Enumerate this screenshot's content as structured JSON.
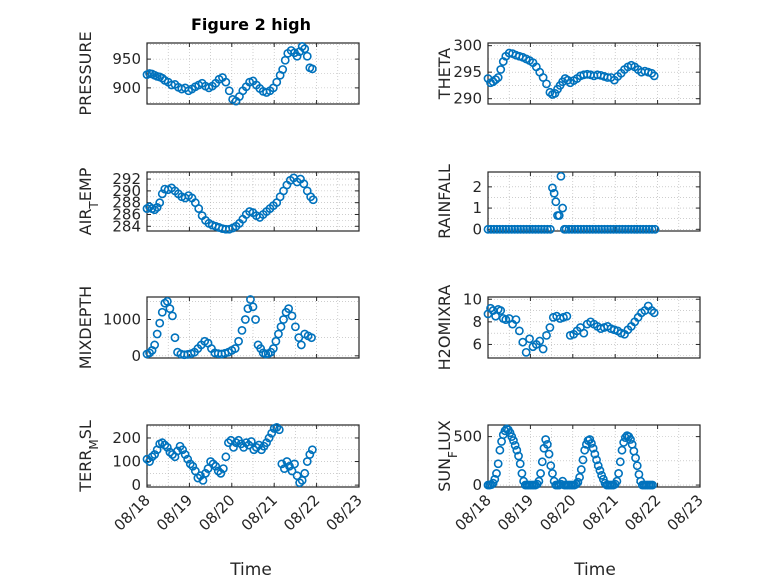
{
  "figure": {
    "title": "Figure 2 high",
    "marker_color": "#0072BD",
    "xlabel": "Time",
    "xticks": [
      "08/18",
      "08/19",
      "08/20",
      "08/21",
      "08/22",
      "08/23"
    ],
    "xrange": [
      0,
      5
    ]
  },
  "chart_data": [
    {
      "type": "scatter",
      "id": "pressure",
      "ylabel": "PRESSURE",
      "yticks": [
        900,
        950
      ],
      "ylim": [
        872,
        978
      ],
      "grid": true,
      "x": [
        0.0,
        0.06,
        0.12,
        0.18,
        0.24,
        0.3,
        0.36,
        0.42,
        0.5,
        0.58,
        0.66,
        0.74,
        0.82,
        0.9,
        0.98,
        1.06,
        1.14,
        1.22,
        1.3,
        1.38,
        1.46,
        1.54,
        1.62,
        1.7,
        1.78,
        1.86,
        1.94,
        2.02,
        2.1,
        2.18,
        2.26,
        2.34,
        2.42,
        2.5,
        2.58,
        2.66,
        2.74,
        2.82,
        2.9,
        2.98,
        3.06,
        3.14,
        3.2,
        3.26,
        3.32,
        3.4,
        3.48,
        3.54,
        3.6,
        3.66,
        3.72,
        3.78,
        3.84,
        3.9
      ],
      "y": [
        923,
        925,
        924,
        922,
        920,
        919,
        917,
        913,
        910,
        905,
        906,
        901,
        898,
        900,
        895,
        898,
        902,
        905,
        908,
        903,
        900,
        903,
        908,
        915,
        918,
        910,
        895,
        880,
        877,
        885,
        895,
        902,
        910,
        912,
        905,
        899,
        894,
        892,
        895,
        900,
        910,
        922,
        932,
        948,
        960,
        965,
        961,
        955,
        963,
        972,
        968,
        955,
        935,
        933
      ]
    },
    {
      "type": "scatter",
      "id": "theta",
      "ylabel": "THETA",
      "yticks": [
        290,
        295,
        300
      ],
      "ylim": [
        289,
        300.5
      ],
      "grid": true,
      "x": [
        0.0,
        0.06,
        0.12,
        0.18,
        0.24,
        0.3,
        0.36,
        0.42,
        0.5,
        0.58,
        0.66,
        0.74,
        0.82,
        0.9,
        0.98,
        1.06,
        1.14,
        1.22,
        1.3,
        1.38,
        1.46,
        1.52,
        1.58,
        1.64,
        1.7,
        1.76,
        1.82,
        1.88,
        1.94,
        2.02,
        2.1,
        2.18,
        2.26,
        2.34,
        2.42,
        2.5,
        2.58,
        2.66,
        2.74,
        2.82,
        2.9,
        2.98,
        3.06,
        3.14,
        3.22,
        3.3,
        3.38,
        3.46,
        3.54,
        3.62,
        3.7,
        3.78,
        3.86,
        3.92
      ],
      "y": [
        293.8,
        293.0,
        293.2,
        293.6,
        294.0,
        295.5,
        297.0,
        298.0,
        298.6,
        298.5,
        298.2,
        298.0,
        297.8,
        297.5,
        297.2,
        296.8,
        296.0,
        295.0,
        294.0,
        292.8,
        291.2,
        290.8,
        291.0,
        291.8,
        292.5,
        293.2,
        293.8,
        293.5,
        293.0,
        293.4,
        293.8,
        294.3,
        294.5,
        294.6,
        294.5,
        294.3,
        294.5,
        294.4,
        294.2,
        294.0,
        294.0,
        293.5,
        294.2,
        294.8,
        295.5,
        296.0,
        296.3,
        296.0,
        295.5,
        295.0,
        295.2,
        295.0,
        294.8,
        294.3
      ]
    },
    {
      "type": "scatter",
      "id": "air_temp",
      "ylabel": "AIR",
      "ylabel_sub": "T",
      "ylabel_rest": "EMP",
      "yticks": [
        284,
        286,
        288,
        290,
        292
      ],
      "ylim": [
        283.2,
        293.2
      ],
      "grid": true,
      "x": [
        0.0,
        0.06,
        0.12,
        0.18,
        0.24,
        0.3,
        0.36,
        0.42,
        0.5,
        0.58,
        0.66,
        0.74,
        0.82,
        0.9,
        0.98,
        1.06,
        1.14,
        1.22,
        1.3,
        1.38,
        1.46,
        1.54,
        1.62,
        1.7,
        1.78,
        1.86,
        1.94,
        2.02,
        2.1,
        2.18,
        2.26,
        2.34,
        2.42,
        2.5,
        2.58,
        2.66,
        2.74,
        2.82,
        2.9,
        2.98,
        3.06,
        3.14,
        3.22,
        3.3,
        3.38,
        3.46,
        3.54,
        3.62,
        3.7,
        3.78,
        3.86,
        3.92
      ],
      "y": [
        287.0,
        287.3,
        287.0,
        286.8,
        287.2,
        288.0,
        289.5,
        290.3,
        290.2,
        290.5,
        290.0,
        289.5,
        289.0,
        288.8,
        289.2,
        288.8,
        288.0,
        287.0,
        285.8,
        285.0,
        284.5,
        284.2,
        284.0,
        283.8,
        283.6,
        283.5,
        283.5,
        283.7,
        284.0,
        284.5,
        285.2,
        286.0,
        286.5,
        286.3,
        285.8,
        285.5,
        286.0,
        286.5,
        287.0,
        287.5,
        288.0,
        289.0,
        290.0,
        291.0,
        291.8,
        292.2,
        291.5,
        292.0,
        291.2,
        290.0,
        289.0,
        288.5
      ]
    },
    {
      "type": "scatter",
      "id": "rainfall",
      "ylabel": "RAINFALL",
      "yticks": [
        0,
        1,
        2
      ],
      "ylim": [
        -0.08,
        2.7
      ],
      "grid": true,
      "x": [
        0.0,
        0.07,
        0.14,
        0.21,
        0.28,
        0.35,
        0.42,
        0.49,
        0.56,
        0.63,
        0.7,
        0.77,
        0.84,
        0.91,
        0.98,
        1.05,
        1.12,
        1.19,
        1.26,
        1.33,
        1.4,
        1.47,
        1.52,
        1.56,
        1.6,
        1.64,
        1.68,
        1.72,
        1.76,
        1.8,
        1.84,
        1.91,
        1.98,
        2.05,
        2.12,
        2.19,
        2.26,
        2.33,
        2.4,
        2.47,
        2.54,
        2.61,
        2.68,
        2.75,
        2.82,
        2.89,
        2.96,
        3.03,
        3.1,
        3.17,
        3.24,
        3.31,
        3.38,
        3.45,
        3.52,
        3.59,
        3.66,
        3.73,
        3.8,
        3.87,
        3.94
      ],
      "y": [
        0,
        0,
        0,
        0,
        0,
        0,
        0,
        0,
        0,
        0,
        0,
        0,
        0,
        0,
        0,
        0,
        0,
        0,
        0,
        0,
        0,
        0,
        1.95,
        1.7,
        1.3,
        0.65,
        0.65,
        2.5,
        1.0,
        0.0,
        0,
        0,
        0,
        0,
        0,
        0,
        0,
        0,
        0,
        0,
        0,
        0,
        0,
        0,
        0,
        0,
        0,
        0,
        0,
        0,
        0,
        0,
        0,
        0,
        0,
        0,
        0,
        0,
        0,
        0,
        0
      ]
    },
    {
      "type": "scatter",
      "id": "mixdepth",
      "ylabel": "MIXDEPTH",
      "yticks": [
        0,
        1000
      ],
      "ylim": [
        -60,
        1620
      ],
      "grid": true,
      "x": [
        0.0,
        0.06,
        0.12,
        0.18,
        0.24,
        0.3,
        0.36,
        0.42,
        0.48,
        0.54,
        0.6,
        0.66,
        0.72,
        0.8,
        0.88,
        0.96,
        1.04,
        1.12,
        1.2,
        1.28,
        1.36,
        1.44,
        1.52,
        1.6,
        1.68,
        1.76,
        1.84,
        1.92,
        2.0,
        2.08,
        2.16,
        2.24,
        2.32,
        2.38,
        2.44,
        2.5,
        2.56,
        2.62,
        2.68,
        2.74,
        2.8,
        2.86,
        2.92,
        2.98,
        3.04,
        3.1,
        3.16,
        3.22,
        3.28,
        3.34,
        3.42,
        3.5,
        3.58,
        3.64,
        3.72,
        3.8,
        3.88
      ],
      "y": [
        50,
        80,
        150,
        300,
        600,
        900,
        1200,
        1450,
        1500,
        1300,
        1100,
        500,
        100,
        50,
        30,
        40,
        60,
        100,
        200,
        300,
        400,
        350,
        200,
        80,
        60,
        50,
        70,
        100,
        150,
        200,
        400,
        700,
        1000,
        1300,
        1550,
        1350,
        1000,
        300,
        200,
        80,
        50,
        60,
        100,
        200,
        400,
        600,
        800,
        1000,
        1200,
        1300,
        1100,
        800,
        500,
        300,
        600,
        550,
        500
      ]
    },
    {
      "type": "scatter",
      "id": "h2omixra",
      "ylabel": "H2OMIXRA",
      "yticks": [
        6,
        8,
        10
      ],
      "ylim": [
        4.8,
        10.2
      ],
      "grid": true,
      "x": [
        0.0,
        0.06,
        0.12,
        0.18,
        0.24,
        0.3,
        0.36,
        0.42,
        0.5,
        0.58,
        0.66,
        0.74,
        0.82,
        0.9,
        0.98,
        1.06,
        1.14,
        1.22,
        1.3,
        1.38,
        1.46,
        1.54,
        1.62,
        1.7,
        1.78,
        1.86,
        1.94,
        2.02,
        2.1,
        2.18,
        2.26,
        2.34,
        2.42,
        2.5,
        2.58,
        2.66,
        2.74,
        2.82,
        2.9,
        2.98,
        3.06,
        3.14,
        3.22,
        3.3,
        3.38,
        3.46,
        3.54,
        3.62,
        3.7,
        3.78,
        3.86,
        3.92
      ],
      "y": [
        8.7,
        9.2,
        9.0,
        8.5,
        9.1,
        9.0,
        8.3,
        8.2,
        8.3,
        7.8,
        8.2,
        7.2,
        6.2,
        5.3,
        6.5,
        5.8,
        6.0,
        6.3,
        5.6,
        6.8,
        7.5,
        8.4,
        8.5,
        8.3,
        8.4,
        8.5,
        6.8,
        6.9,
        7.2,
        7.5,
        7.0,
        7.8,
        8.0,
        7.8,
        7.6,
        7.4,
        7.5,
        7.6,
        7.4,
        7.3,
        7.2,
        7.0,
        6.9,
        7.3,
        7.6,
        8.0,
        8.4,
        8.8,
        9.0,
        9.4,
        9.0,
        8.8
      ]
    },
    {
      "type": "scatter",
      "id": "terr_msl",
      "ylabel": "TERR",
      "ylabel_sub": "M",
      "ylabel_rest": "SL",
      "yticks": [
        0,
        100,
        200
      ],
      "ylim": [
        -8,
        255
      ],
      "grid": true,
      "x": [
        0.0,
        0.06,
        0.12,
        0.18,
        0.24,
        0.3,
        0.36,
        0.42,
        0.48,
        0.54,
        0.6,
        0.66,
        0.72,
        0.78,
        0.84,
        0.9,
        0.96,
        1.02,
        1.08,
        1.14,
        1.2,
        1.26,
        1.32,
        1.38,
        1.44,
        1.5,
        1.56,
        1.62,
        1.68,
        1.74,
        1.8,
        1.86,
        1.92,
        1.98,
        2.04,
        2.1,
        2.16,
        2.22,
        2.28,
        2.34,
        2.4,
        2.46,
        2.52,
        2.58,
        2.64,
        2.7,
        2.76,
        2.82,
        2.88,
        2.94,
        3.0,
        3.06,
        3.12,
        3.18,
        3.24,
        3.3,
        3.36,
        3.42,
        3.48,
        3.54,
        3.6,
        3.66,
        3.72,
        3.78,
        3.84,
        3.9
      ],
      "y": [
        110,
        100,
        120,
        130,
        150,
        175,
        180,
        170,
        160,
        140,
        130,
        120,
        145,
        165,
        150,
        130,
        110,
        90,
        80,
        60,
        30,
        40,
        20,
        50,
        70,
        100,
        90,
        80,
        60,
        50,
        70,
        120,
        180,
        190,
        160,
        180,
        190,
        175,
        160,
        180,
        170,
        185,
        150,
        160,
        170,
        150,
        165,
        180,
        200,
        220,
        240,
        245,
        235,
        90,
        70,
        100,
        80,
        60,
        90,
        40,
        10,
        20,
        50,
        100,
        130,
        150
      ]
    },
    {
      "type": "scatter",
      "id": "sun_flux",
      "ylabel": "SUN",
      "ylabel_sub": "F",
      "ylabel_rest": "LUX",
      "yticks": [
        0,
        500
      ],
      "ylim": [
        -20,
        620
      ],
      "grid": true,
      "x": [
        0.0,
        0.04,
        0.08,
        0.12,
        0.16,
        0.2,
        0.24,
        0.28,
        0.32,
        0.36,
        0.4,
        0.44,
        0.48,
        0.52,
        0.56,
        0.6,
        0.64,
        0.68,
        0.72,
        0.76,
        0.8,
        0.84,
        0.88,
        0.92,
        0.96,
        1.0,
        1.04,
        1.08,
        1.12,
        1.16,
        1.2,
        1.24,
        1.28,
        1.32,
        1.36,
        1.4,
        1.44,
        1.48,
        1.52,
        1.56,
        1.6,
        1.64,
        1.68,
        1.72,
        1.76,
        1.8,
        1.84,
        1.88,
        1.92,
        1.96,
        2.0,
        2.04,
        2.08,
        2.12,
        2.16,
        2.2,
        2.24,
        2.28,
        2.32,
        2.36,
        2.4,
        2.44,
        2.48,
        2.52,
        2.56,
        2.6,
        2.64,
        2.68,
        2.72,
        2.76,
        2.8,
        2.84,
        2.88,
        2.92,
        2.96,
        3.0,
        3.04,
        3.08,
        3.12,
        3.16,
        3.2,
        3.24,
        3.28,
        3.32,
        3.36,
        3.4,
        3.44,
        3.48,
        3.52,
        3.56,
        3.6,
        3.64,
        3.68,
        3.72,
        3.76,
        3.8,
        3.84,
        3.88
      ],
      "y": [
        0,
        0,
        5,
        20,
        60,
        120,
        220,
        360,
        450,
        520,
        560,
        580,
        570,
        540,
        500,
        460,
        410,
        360,
        300,
        220,
        120,
        40,
        0,
        0,
        0,
        0,
        0,
        0,
        0,
        10,
        40,
        120,
        240,
        380,
        470,
        420,
        320,
        200,
        120,
        40,
        0,
        0,
        0,
        10,
        40,
        0,
        0,
        0,
        0,
        0,
        0,
        0,
        10,
        30,
        80,
        160,
        260,
        360,
        420,
        460,
        470,
        430,
        380,
        320,
        260,
        200,
        150,
        100,
        60,
        20,
        0,
        0,
        0,
        0,
        0,
        10,
        40,
        120,
        240,
        360,
        440,
        490,
        510,
        500,
        470,
        420,
        350,
        280,
        200,
        110,
        40,
        0,
        0,
        0,
        0,
        0,
        0,
        0
      ]
    }
  ]
}
